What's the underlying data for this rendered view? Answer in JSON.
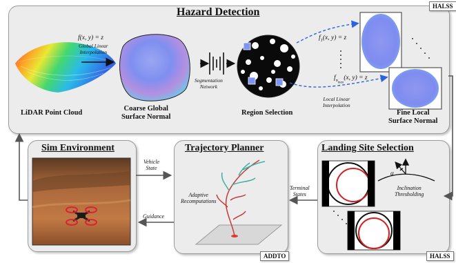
{
  "hazard": {
    "title": "Hazard Detection",
    "tag": "HALSS",
    "lidar_label": "LiDAR Point Cloud",
    "coarse_label_1": "Coarse Global",
    "coarse_label_2": "Surface Normal",
    "region_label": "Region Selection",
    "fine_label_1": "Fine Local",
    "fine_label_2": "Surface Normal",
    "global_fn": "f(x, y) = z",
    "global_note_1": "Global Linear",
    "global_note_2": "Interpolation",
    "seg_note_1": "Segmentation",
    "seg_note_2": "Network",
    "local_fn_1": "f",
    "local_fn_1_sub": "1",
    "local_fn_1_rest": "(x, y) = z",
    "local_fn_n": "f",
    "local_fn_n_sub": "n",
    "local_fn_n_subsub": "max",
    "local_fn_n_rest": "(x, y) = z",
    "local_note_1": "Local Linear",
    "local_note_2": "Interpolation"
  },
  "sim": {
    "title": "Sim Environment"
  },
  "planner": {
    "title": "Trajectory Planner",
    "tag": "ADDTO",
    "adaptive_1": "Adaptive",
    "adaptive_2": "Recomputations"
  },
  "landing": {
    "title": "Landing Site Selection",
    "tag": "HALSS",
    "alpha": "α",
    "incl_1": "Inclination",
    "incl_2": "Thresholding"
  },
  "flows": {
    "vehicle_1": "Vehicle",
    "vehicle_2": "State",
    "guidance": "Guidance",
    "terminal_1": "Terminal",
    "terminal_2": "States"
  }
}
